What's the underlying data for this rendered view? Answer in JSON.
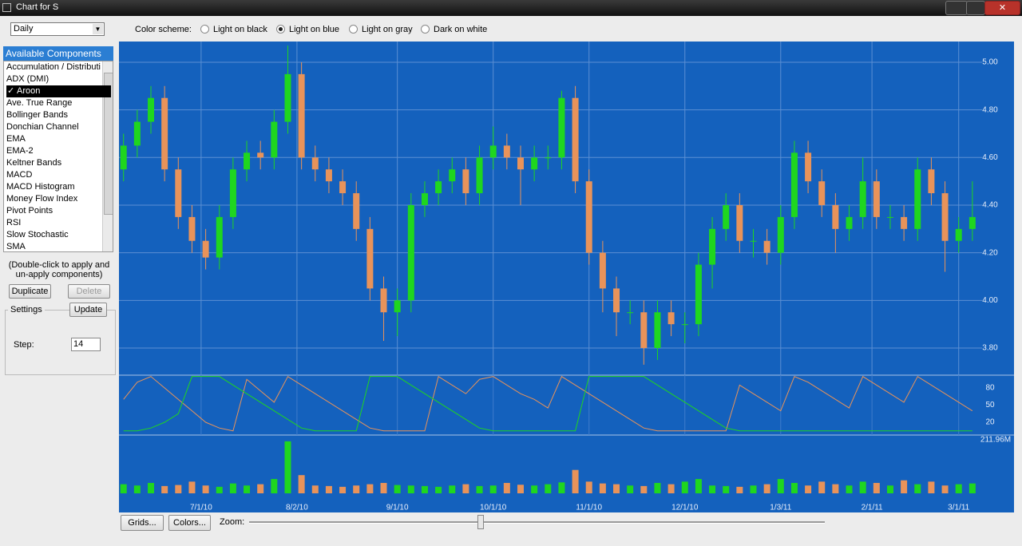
{
  "window": {
    "title": "Chart for S"
  },
  "toolbar": {
    "period": "Daily",
    "color_scheme_label": "Color scheme:",
    "schemes": [
      "Light on black",
      "Light on blue",
      "Light on gray",
      "Dark on white"
    ],
    "selected_scheme": 1
  },
  "sidebar": {
    "header": "Available Components",
    "items": [
      "Accumulation / Distributio",
      "ADX (DMI)",
      "Aroon",
      "Ave. True Range",
      "Bollinger Bands",
      "Donchian Channel",
      "EMA",
      "EMA-2",
      "Keltner Bands",
      "MACD",
      "MACD Histogram",
      "Money Flow Index",
      "Pivot Points",
      "RSI",
      "Slow Stochastic",
      "SMA"
    ],
    "applied": {
      "index": 2,
      "mark": "✓"
    },
    "note": [
      "(Double-click to apply and",
      "un-apply components)"
    ],
    "duplicate": "Duplicate",
    "delete": "Delete",
    "settings": {
      "title": "Settings",
      "update": "Update",
      "step_label": "Step:",
      "step_value": "14"
    }
  },
  "bottom": {
    "grids": "Grids...",
    "colors": "Colors...",
    "zoom_label": "Zoom:"
  },
  "chart_data": [
    {
      "type": "candlestick",
      "background": "#1461bd",
      "grid": true,
      "up_color": "#1fd61f",
      "down_color": "#e8935a",
      "x": [
        1,
        4,
        7,
        10,
        13,
        16,
        19,
        22,
        25,
        28,
        31,
        34,
        37,
        40,
        43,
        46,
        49,
        52,
        55,
        58,
        61,
        64,
        67,
        70,
        73,
        76,
        79,
        82,
        85,
        88,
        91,
        94,
        97,
        100,
        103,
        106,
        109,
        112,
        115,
        118,
        121,
        124,
        127,
        130,
        133,
        136,
        139,
        142,
        145,
        148,
        151,
        154,
        157,
        160,
        163,
        166,
        169,
        172,
        175,
        178,
        181,
        184,
        187
      ],
      "open": [
        4.55,
        4.65,
        4.75,
        4.85,
        4.55,
        4.35,
        4.25,
        4.18,
        4.35,
        4.55,
        4.62,
        4.6,
        4.75,
        4.95,
        4.6,
        4.55,
        4.5,
        4.45,
        4.3,
        4.05,
        3.95,
        4.0,
        4.4,
        4.45,
        4.5,
        4.55,
        4.45,
        4.6,
        4.65,
        4.6,
        4.55,
        4.6,
        4.6,
        4.85,
        4.5,
        4.2,
        4.05,
        3.95,
        3.95,
        3.8,
        3.95,
        3.9,
        3.9,
        4.15,
        4.3,
        4.4,
        4.25,
        4.25,
        4.2,
        4.35,
        4.62,
        4.5,
        4.4,
        4.3,
        4.35,
        4.5,
        4.35,
        4.35,
        4.3,
        4.55,
        4.45,
        4.25,
        4.3
      ],
      "high": [
        4.7,
        4.8,
        4.9,
        4.9,
        4.6,
        4.4,
        4.3,
        4.4,
        4.6,
        4.67,
        4.67,
        4.8,
        5.07,
        5.0,
        4.65,
        4.6,
        4.55,
        4.5,
        4.35,
        4.1,
        4.05,
        4.45,
        4.5,
        4.55,
        4.6,
        4.6,
        4.65,
        4.73,
        4.7,
        4.65,
        4.65,
        4.65,
        4.88,
        4.9,
        4.55,
        4.25,
        4.1,
        4.0,
        4.0,
        4.0,
        4.0,
        3.95,
        4.2,
        4.35,
        4.45,
        4.45,
        4.3,
        4.3,
        4.4,
        4.67,
        4.67,
        4.55,
        4.45,
        4.4,
        4.6,
        4.55,
        4.4,
        4.4,
        4.6,
        4.6,
        4.5,
        4.35,
        4.5
      ],
      "low": [
        4.5,
        4.6,
        4.7,
        4.5,
        4.3,
        4.2,
        4.13,
        4.13,
        4.3,
        4.5,
        4.55,
        4.55,
        4.7,
        4.55,
        4.5,
        4.45,
        4.4,
        4.25,
        4.0,
        3.83,
        3.85,
        3.95,
        4.35,
        4.4,
        4.45,
        4.4,
        4.4,
        4.55,
        4.55,
        4.4,
        4.5,
        4.55,
        4.55,
        4.45,
        4.15,
        3.95,
        3.85,
        3.9,
        3.73,
        3.75,
        3.85,
        3.82,
        3.85,
        4.05,
        4.25,
        4.2,
        4.18,
        4.15,
        4.15,
        4.3,
        4.45,
        4.35,
        4.2,
        4.25,
        4.3,
        4.3,
        4.3,
        4.25,
        4.25,
        4.4,
        4.12,
        4.2,
        4.25
      ],
      "close": [
        4.65,
        4.75,
        4.85,
        4.55,
        4.35,
        4.25,
        4.18,
        4.35,
        4.55,
        4.62,
        4.6,
        4.75,
        4.95,
        4.6,
        4.55,
        4.5,
        4.45,
        4.3,
        4.05,
        3.95,
        4.0,
        4.4,
        4.45,
        4.5,
        4.55,
        4.45,
        4.6,
        4.65,
        4.6,
        4.55,
        4.6,
        4.6,
        4.85,
        4.5,
        4.2,
        4.05,
        3.95,
        3.95,
        3.8,
        3.95,
        3.9,
        3.9,
        4.15,
        4.3,
        4.4,
        4.25,
        4.25,
        4.2,
        4.35,
        4.62,
        4.5,
        4.4,
        4.3,
        4.35,
        4.5,
        4.35,
        4.35,
        4.3,
        4.55,
        4.45,
        4.25,
        4.3,
        4.35
      ],
      "xlim": [
        0,
        190
      ],
      "ylim": [
        3.686,
        5.087
      ],
      "yticks": [
        {
          "value": 5,
          "label": "5.00"
        },
        {
          "value": 4.8,
          "label": "4.80"
        },
        {
          "value": 4.6,
          "label": "4.60"
        },
        {
          "value": 4.4,
          "label": "4.40"
        },
        {
          "value": 4.2,
          "label": "4.20"
        },
        {
          "value": 4,
          "label": "4.00"
        },
        {
          "value": 3.8,
          "label": "3.80"
        }
      ]
    },
    {
      "type": "line",
      "x": [
        1,
        4,
        7,
        10,
        13,
        16,
        19,
        22,
        25,
        28,
        31,
        34,
        37,
        40,
        43,
        46,
        49,
        52,
        55,
        58,
        61,
        64,
        67,
        70,
        73,
        76,
        79,
        82,
        85,
        88,
        91,
        94,
        97,
        100,
        103,
        106,
        109,
        112,
        115,
        118,
        121,
        124,
        127,
        130,
        133,
        136,
        139,
        142,
        145,
        148,
        151,
        154,
        157,
        160,
        163,
        166,
        169,
        172,
        175,
        178,
        181,
        184,
        187
      ],
      "series": [
        {
          "color": "#e8935a",
          "values": [
            60,
            90,
            100,
            80,
            60,
            40,
            20,
            10,
            5,
            95,
            75,
            55,
            100,
            85,
            70,
            55,
            40,
            25,
            10,
            5,
            5,
            5,
            5,
            100,
            85,
            70,
            95,
            100,
            85,
            70,
            60,
            45,
            100,
            85,
            70,
            55,
            40,
            25,
            10,
            5,
            5,
            5,
            5,
            5,
            5,
            85,
            70,
            55,
            40,
            100,
            90,
            75,
            60,
            45,
            100,
            85,
            70,
            55,
            100,
            85,
            70,
            55,
            40
          ]
        },
        {
          "color": "#1fd61f",
          "values": [
            5,
            5,
            10,
            20,
            35,
            100,
            100,
            100,
            85,
            70,
            55,
            40,
            25,
            10,
            5,
            5,
            5,
            5,
            100,
            100,
            100,
            85,
            70,
            55,
            40,
            25,
            10,
            5,
            5,
            5,
            5,
            5,
            5,
            5,
            100,
            100,
            100,
            100,
            100,
            85,
            70,
            55,
            40,
            25,
            10,
            5,
            5,
            5,
            5,
            5,
            5,
            5,
            5,
            5,
            5,
            5,
            5,
            5,
            5,
            5,
            5,
            5,
            5
          ]
        }
      ],
      "xlim": [
        0,
        190
      ],
      "ylim": [
        -2.3,
        102.3
      ],
      "yticks": [
        80,
        50,
        20
      ]
    },
    {
      "type": "bar",
      "x": [
        1,
        4,
        7,
        10,
        13,
        16,
        19,
        22,
        25,
        28,
        31,
        34,
        37,
        40,
        43,
        46,
        49,
        52,
        55,
        58,
        61,
        64,
        67,
        70,
        73,
        76,
        79,
        82,
        85,
        88,
        91,
        94,
        97,
        100,
        103,
        106,
        109,
        112,
        115,
        118,
        121,
        124,
        127,
        130,
        133,
        136,
        139,
        142,
        145,
        148,
        151,
        154,
        157,
        160,
        163,
        166,
        169,
        172,
        175,
        178,
        181,
        184,
        187
      ],
      "values": [
        35,
        30,
        40,
        28,
        32,
        45,
        30,
        25,
        38,
        30,
        35,
        55,
        200,
        70,
        30,
        28,
        25,
        30,
        35,
        40,
        32,
        30,
        28,
        25,
        30,
        35,
        28,
        30,
        40,
        33,
        30,
        35,
        42,
        90,
        45,
        38,
        35,
        30,
        28,
        40,
        35,
        45,
        55,
        30,
        28,
        25,
        30,
        35,
        55,
        40,
        30,
        45,
        35,
        30,
        45,
        40,
        30,
        50,
        35,
        45,
        30,
        35,
        38
      ],
      "xlim": [
        0,
        190
      ],
      "ylim": [
        0,
        215
      ],
      "yticks": [
        {
          "value": 211.96,
          "label": "211.96M"
        }
      ],
      "xticks": [
        {
          "value": 18,
          "label": "7/1/10"
        },
        {
          "value": 39,
          "label": "8/2/10"
        },
        {
          "value": 61,
          "label": "9/1/10"
        },
        {
          "value": 82,
          "label": "10/1/10"
        },
        {
          "value": 103,
          "label": "11/1/10"
        },
        {
          "value": 124,
          "label": "12/1/10"
        },
        {
          "value": 145,
          "label": "1/3/11"
        },
        {
          "value": 165,
          "label": "2/1/11"
        },
        {
          "value": 184,
          "label": "3/1/11"
        }
      ]
    }
  ]
}
